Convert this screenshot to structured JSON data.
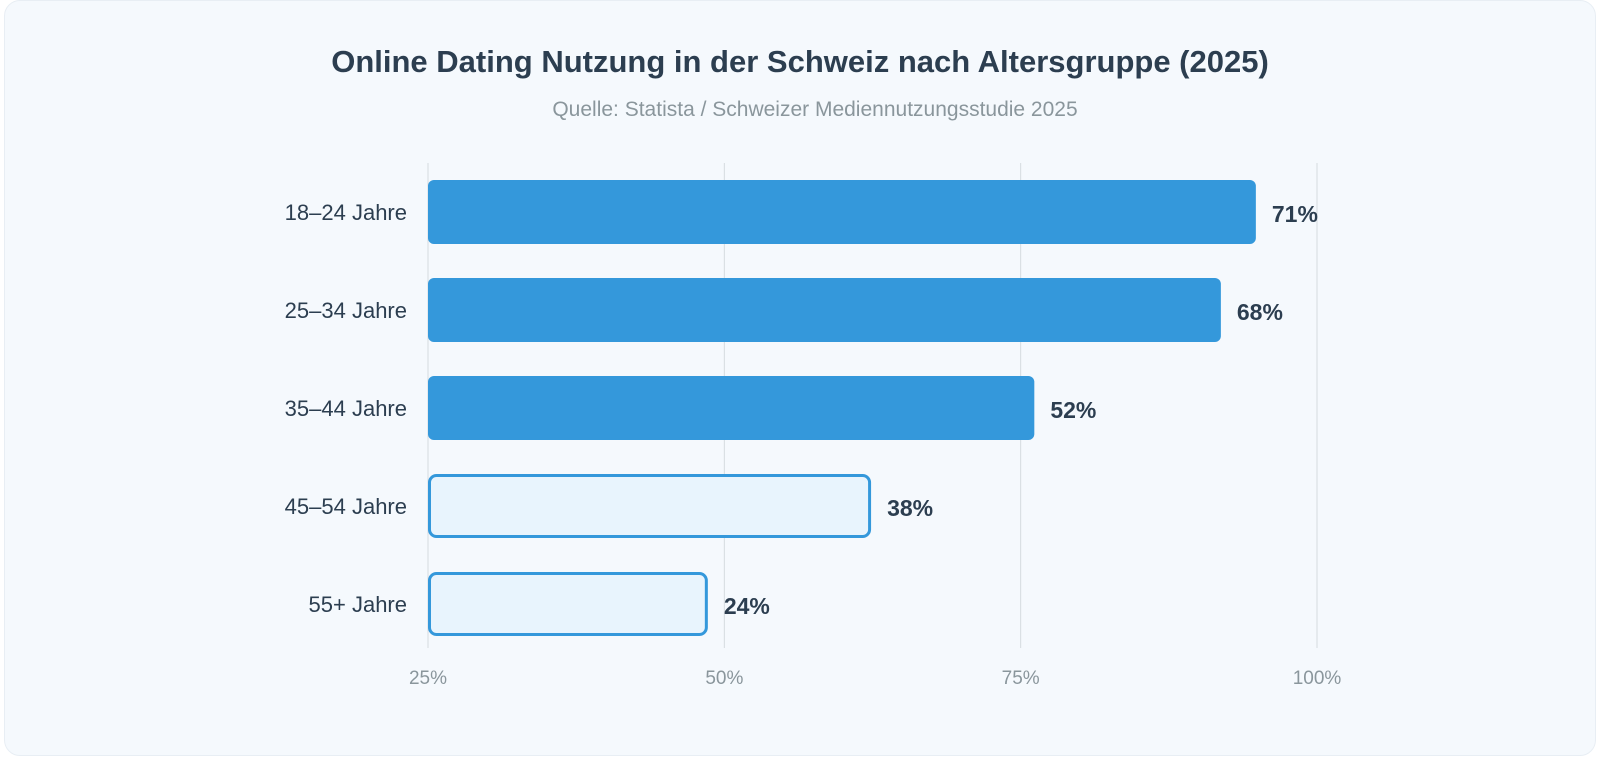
{
  "chart_data": {
    "type": "bar",
    "orientation": "horizontal",
    "title": "Online Dating Nutzung in der Schweiz nach Altersgruppe (2025)",
    "subtitle": "Quelle: Statista / Schweizer Mediennutzungsstudie 2025",
    "categories": [
      "18–24 Jahre",
      "25–34 Jahre",
      "35–44 Jahre",
      "45–54 Jahre",
      "55+ Jahre"
    ],
    "values": [
      71,
      68,
      52,
      38,
      24
    ],
    "data_labels": [
      "71%",
      "68%",
      "52%",
      "38%",
      "24%"
    ],
    "highlighted": [
      true,
      true,
      true,
      false,
      false
    ],
    "x_ticks": [
      "25%",
      "50%",
      "75%",
      "100%"
    ],
    "xlim": [
      25,
      100
    ],
    "grid": "vertical",
    "colors": {
      "filled": "#3498db",
      "outline": "#3498db",
      "outline_fill": "#e8f4fd",
      "label": "#2c3e50",
      "tick": "#8a969c",
      "grid": "#d5dbe0"
    }
  }
}
